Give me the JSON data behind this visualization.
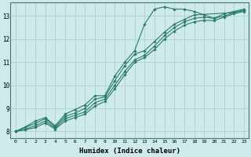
{
  "xlabel": "Humidex (Indice chaleur)",
  "background_color": "#ceeaea",
  "grid_color": "#aacccc",
  "line_color": "#2a7a6e",
  "xlim": [
    -0.5,
    23.5
  ],
  "ylim": [
    7.7,
    13.6
  ],
  "xticks": [
    0,
    1,
    2,
    3,
    4,
    5,
    6,
    7,
    8,
    9,
    10,
    11,
    12,
    13,
    14,
    15,
    16,
    17,
    18,
    19,
    20,
    21,
    22,
    23
  ],
  "yticks": [
    8,
    9,
    10,
    11,
    12,
    13
  ],
  "lines": [
    {
      "x": [
        0,
        1,
        2,
        3,
        4,
        5,
        6,
        7,
        8,
        9,
        10,
        11,
        12,
        13,
        14,
        15,
        16,
        17,
        18,
        19,
        20,
        21,
        22,
        23
      ],
      "y": [
        8.0,
        8.2,
        8.45,
        8.6,
        8.25,
        8.75,
        8.95,
        9.15,
        9.55,
        9.55,
        10.4,
        11.0,
        11.5,
        12.65,
        13.3,
        13.4,
        13.3,
        13.3,
        13.2,
        13.05,
        12.9,
        13.1,
        13.2,
        13.3
      ]
    },
    {
      "x": [
        0,
        2,
        3,
        4,
        5,
        6,
        7,
        8,
        9,
        10,
        11,
        12,
        13,
        14,
        15,
        16,
        17,
        18,
        22,
        23
      ],
      "y": [
        8.0,
        8.35,
        8.55,
        8.2,
        8.65,
        8.8,
        9.0,
        9.4,
        9.5,
        10.2,
        10.85,
        11.35,
        11.5,
        11.9,
        12.3,
        12.65,
        12.85,
        13.05,
        13.15,
        13.25
      ]
    },
    {
      "x": [
        0,
        1,
        2,
        3,
        4,
        5,
        6,
        7,
        8,
        9,
        10,
        11,
        12,
        13,
        14,
        15,
        16,
        17,
        18,
        19,
        20,
        21,
        22,
        23
      ],
      "y": [
        8.0,
        8.1,
        8.25,
        8.45,
        8.15,
        8.55,
        8.7,
        8.85,
        9.25,
        9.4,
        10.0,
        10.6,
        11.1,
        11.3,
        11.7,
        12.15,
        12.5,
        12.75,
        12.9,
        12.95,
        12.9,
        13.0,
        13.15,
        13.25
      ]
    },
    {
      "x": [
        0,
        1,
        2,
        3,
        4,
        5,
        6,
        7,
        8,
        9,
        10,
        11,
        12,
        13,
        14,
        15,
        16,
        17,
        18,
        19,
        20,
        21,
        22,
        23
      ],
      "y": [
        8.0,
        8.07,
        8.17,
        8.37,
        8.1,
        8.45,
        8.6,
        8.75,
        9.1,
        9.3,
        9.85,
        10.45,
        11.0,
        11.2,
        11.55,
        12.0,
        12.35,
        12.6,
        12.75,
        12.82,
        12.8,
        12.95,
        13.1,
        13.2
      ]
    }
  ]
}
